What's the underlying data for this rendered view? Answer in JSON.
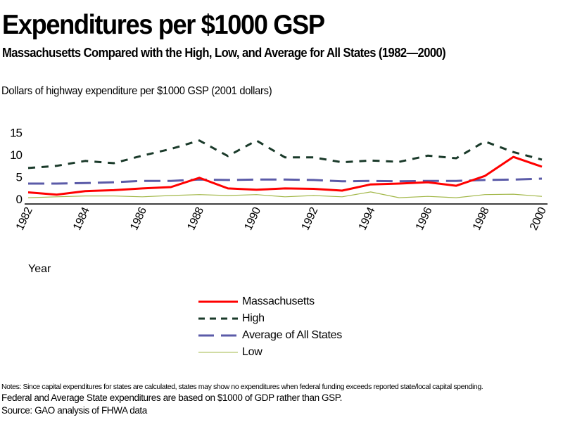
{
  "header": {
    "title": "Expenditures per $1000 GSP",
    "subtitle": "Massachusetts Compared with the High, Low, and Average for All States (1982—2000)",
    "y_axis_caption": "Dollars of highway expenditure per $1000 GSP   (2001 dollars)"
  },
  "chart_data": {
    "type": "line",
    "title": "Expenditures per $1000 GSP",
    "xlabel": "Year",
    "ylabel": "Dollars of highway expenditure per $1000 GSP (2001 dollars)",
    "x": [
      1982,
      1983,
      1984,
      1985,
      1986,
      1987,
      1988,
      1989,
      1990,
      1991,
      1992,
      1993,
      1994,
      1995,
      1996,
      1997,
      1998,
      1999,
      2000
    ],
    "x_tick_labels": [
      "1982",
      "1984",
      "1986",
      "1988",
      "1990",
      "1992",
      "1994",
      "1996",
      "1998",
      "2000"
    ],
    "y_tick_labels": [
      "0",
      "5",
      "10",
      "15"
    ],
    "y_ticks": [
      0,
      5,
      10,
      15
    ],
    "ylim": [
      0,
      15
    ],
    "xlim": [
      1982,
      2000
    ],
    "grid": false,
    "legend_position": "bottom-center",
    "series": [
      {
        "name": "Massachusetts",
        "color": "#ff0000",
        "style": "solid",
        "values": [
          1.5,
          1.0,
          1.8,
          2.0,
          2.4,
          2.7,
          4.8,
          2.4,
          2.1,
          2.4,
          2.3,
          1.9,
          3.3,
          3.5,
          3.8,
          3.0,
          5.2,
          9.5,
          7.3
        ]
      },
      {
        "name": "High",
        "color": "#1a3a2a",
        "style": "dashed",
        "values": [
          7.0,
          7.5,
          8.6,
          8.1,
          9.8,
          11.3,
          13.2,
          9.7,
          13.2,
          9.4,
          9.4,
          8.3,
          8.7,
          8.4,
          9.8,
          9.2,
          13.0,
          10.6,
          8.9
        ]
      },
      {
        "name": "Average of All States",
        "color": "#5b5ba8",
        "style": "long-dashed",
        "values": [
          3.5,
          3.5,
          3.6,
          3.8,
          4.1,
          4.1,
          4.4,
          4.3,
          4.4,
          4.4,
          4.3,
          4.0,
          4.1,
          4.0,
          4.1,
          4.1,
          4.3,
          4.4,
          4.6
        ]
      },
      {
        "name": "Low",
        "color": "#a3b84a",
        "style": "thin",
        "values": [
          0.3,
          0.5,
          0.7,
          0.7,
          0.5,
          0.8,
          1.0,
          0.8,
          1.0,
          0.5,
          0.8,
          0.5,
          1.6,
          0.3,
          0.6,
          0.3,
          1.0,
          1.1,
          0.6
        ]
      }
    ]
  },
  "notes": {
    "line1": "Notes: Since capital expenditures for states are calculated, states may show no expenditures when federal funding exceeds reported state/local capital spending.",
    "line2": "Federal and Average State expenditures are based on $1000 of GDP rather than GSP.",
    "line3": "Source: GAO  analysis of FHWA data"
  }
}
